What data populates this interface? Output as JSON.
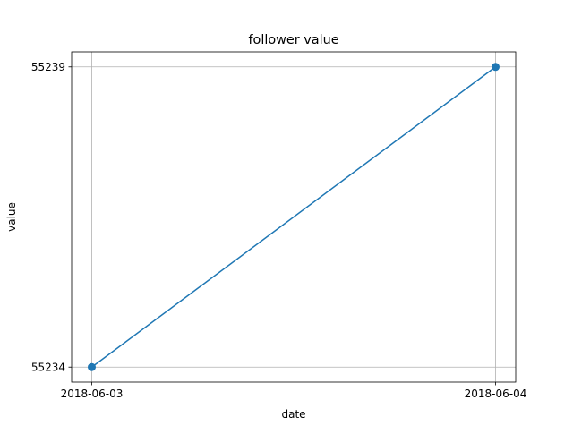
{
  "chart_data": {
    "type": "line",
    "title": "follower value",
    "xlabel": "date",
    "ylabel": "value",
    "x": [
      "2018-06-03",
      "2018-06-04"
    ],
    "series": [
      {
        "values": [
          55234,
          55239
        ],
        "color": "#1f77b4",
        "marker": "circle"
      }
    ],
    "xticks": [
      "2018-06-03",
      "2018-06-04"
    ],
    "yticks": [
      55234,
      55239
    ],
    "ylim": [
      55233.75,
      55239.25
    ],
    "grid": true,
    "legend": "none"
  }
}
